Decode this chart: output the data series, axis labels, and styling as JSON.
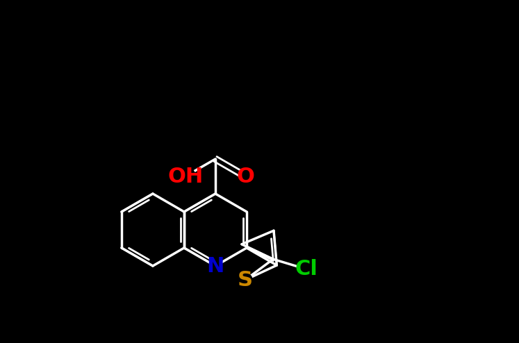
{
  "background_color": "#000000",
  "white": "#ffffff",
  "atom_colors": {
    "O": "#ff0000",
    "N": "#0000cc",
    "S": "#cc8800",
    "Cl": "#00cc00"
  },
  "figsize": [
    7.47,
    4.94
  ],
  "dpi": 100,
  "bond_lw": 2.5,
  "inner_lw": 2.0,
  "font_size": 20,
  "bl": 52
}
